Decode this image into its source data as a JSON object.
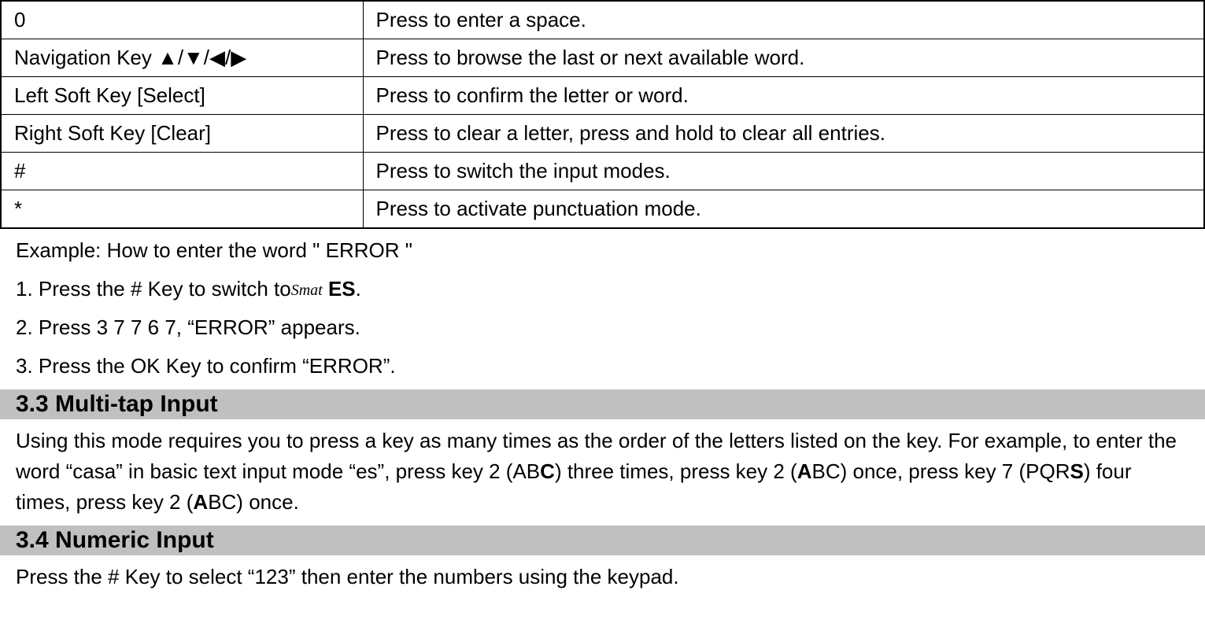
{
  "table": {
    "rows": [
      {
        "key": "0",
        "desc": "Press to enter a space."
      },
      {
        "key": "Navigation Key ▲/▼/◀/▶",
        "desc": "Press to browse the last or next available word."
      },
      {
        "key": "Left Soft Key [Select]",
        "desc": "Press to confirm the letter or word."
      },
      {
        "key": "Right Soft Key [Clear]",
        "desc": "Press to clear a letter, press and hold to clear all entries."
      },
      {
        "key": "#",
        "desc": "Press to switch the input modes."
      },
      {
        "key": "*",
        "desc": "Press to activate punctuation mode."
      }
    ]
  },
  "example": {
    "title": "Example: How to enter the word \" ERROR \"",
    "step1_prefix": "1. Press the # Key to switch to",
    "step1_icon": "Smat",
    "step1_suffix_bold": " ES",
    "step1_suffix_end": ".",
    "step2": "2. Press 3 7 7 6 7, “ERROR” appears.",
    "step3": "3. Press the OK Key to confirm “ERROR”."
  },
  "section33": {
    "heading": "3.3  Multi-tap Input",
    "para_part1": "Using this mode requires you to press a key as many times as the order of the letters listed on the key. For example, to enter the word “casa” in basic text input mode “es”, press key 2 (AB",
    "para_bold1": "C",
    "para_part2": ") three times, press key 2 (",
    "para_bold2": "A",
    "para_part3": "BC) once, press key 7 (PQR",
    "para_bold3": "S",
    "para_part4": ") four times, press key 2 (",
    "para_bold4": "A",
    "para_part5": "BC) once."
  },
  "section34": {
    "heading": "3.4  Numeric Input",
    "para": "Press the # Key to select “123” then enter the numbers using the keypad."
  },
  "colors": {
    "heading_bg": "#c0c0c0",
    "text": "#000000",
    "background": "#ffffff",
    "border": "#000000"
  },
  "typography": {
    "body_fontsize": 26,
    "heading_fontsize": 30,
    "font_family": "Arial"
  }
}
